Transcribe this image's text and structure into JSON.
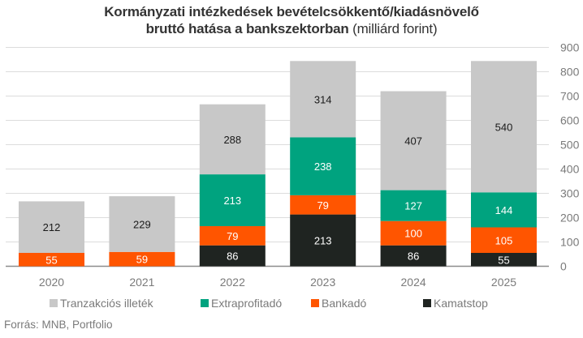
{
  "title": {
    "bold": "Kormányzati intézkedések bevételcsökkentő/kiadásnövelő",
    "bold2": "bruttó hatása a bankszektorban",
    "unit": "(milliárd forint)"
  },
  "source": "Forrás: MNB, Portfolio",
  "chart_data": {
    "type": "bar",
    "stacked": true,
    "title": "Kormányzati intézkedések bevételcsökkentő/kiadásnövelő bruttó hatása a bankszektorban (milliárd forint)",
    "xlabel": "",
    "ylabel": "",
    "ylim": [
      0,
      900
    ],
    "yticks": [
      0,
      100,
      200,
      300,
      400,
      500,
      600,
      700,
      800,
      900
    ],
    "y_axis_position": "right",
    "grid": true,
    "legend_position": "bottom",
    "categories": [
      "2020",
      "2021",
      "2022",
      "2023",
      "2024",
      "2025"
    ],
    "series": [
      {
        "name": "Kamatstop",
        "color": "#1f2421",
        "label_color": "#ffffff",
        "values": [
          0,
          0,
          86,
          213,
          86,
          55
        ]
      },
      {
        "name": "Bankadó",
        "color": "#ff5500",
        "label_color": "#ffffff",
        "values": [
          55,
          59,
          79,
          79,
          100,
          105
        ]
      },
      {
        "name": "Extraprofitadó",
        "color": "#00a37f",
        "label_color": "#ffffff",
        "values": [
          0,
          0,
          213,
          238,
          127,
          144
        ]
      },
      {
        "name": "Tranzakciós illeték",
        "color": "#c8c8c8",
        "label_color": "#1a1a1a",
        "values": [
          212,
          229,
          288,
          314,
          407,
          540
        ]
      }
    ],
    "legend_order": [
      "Tranzakciós illeték",
      "Extraprofitadó",
      "Bankadó",
      "Kamatstop"
    ]
  }
}
